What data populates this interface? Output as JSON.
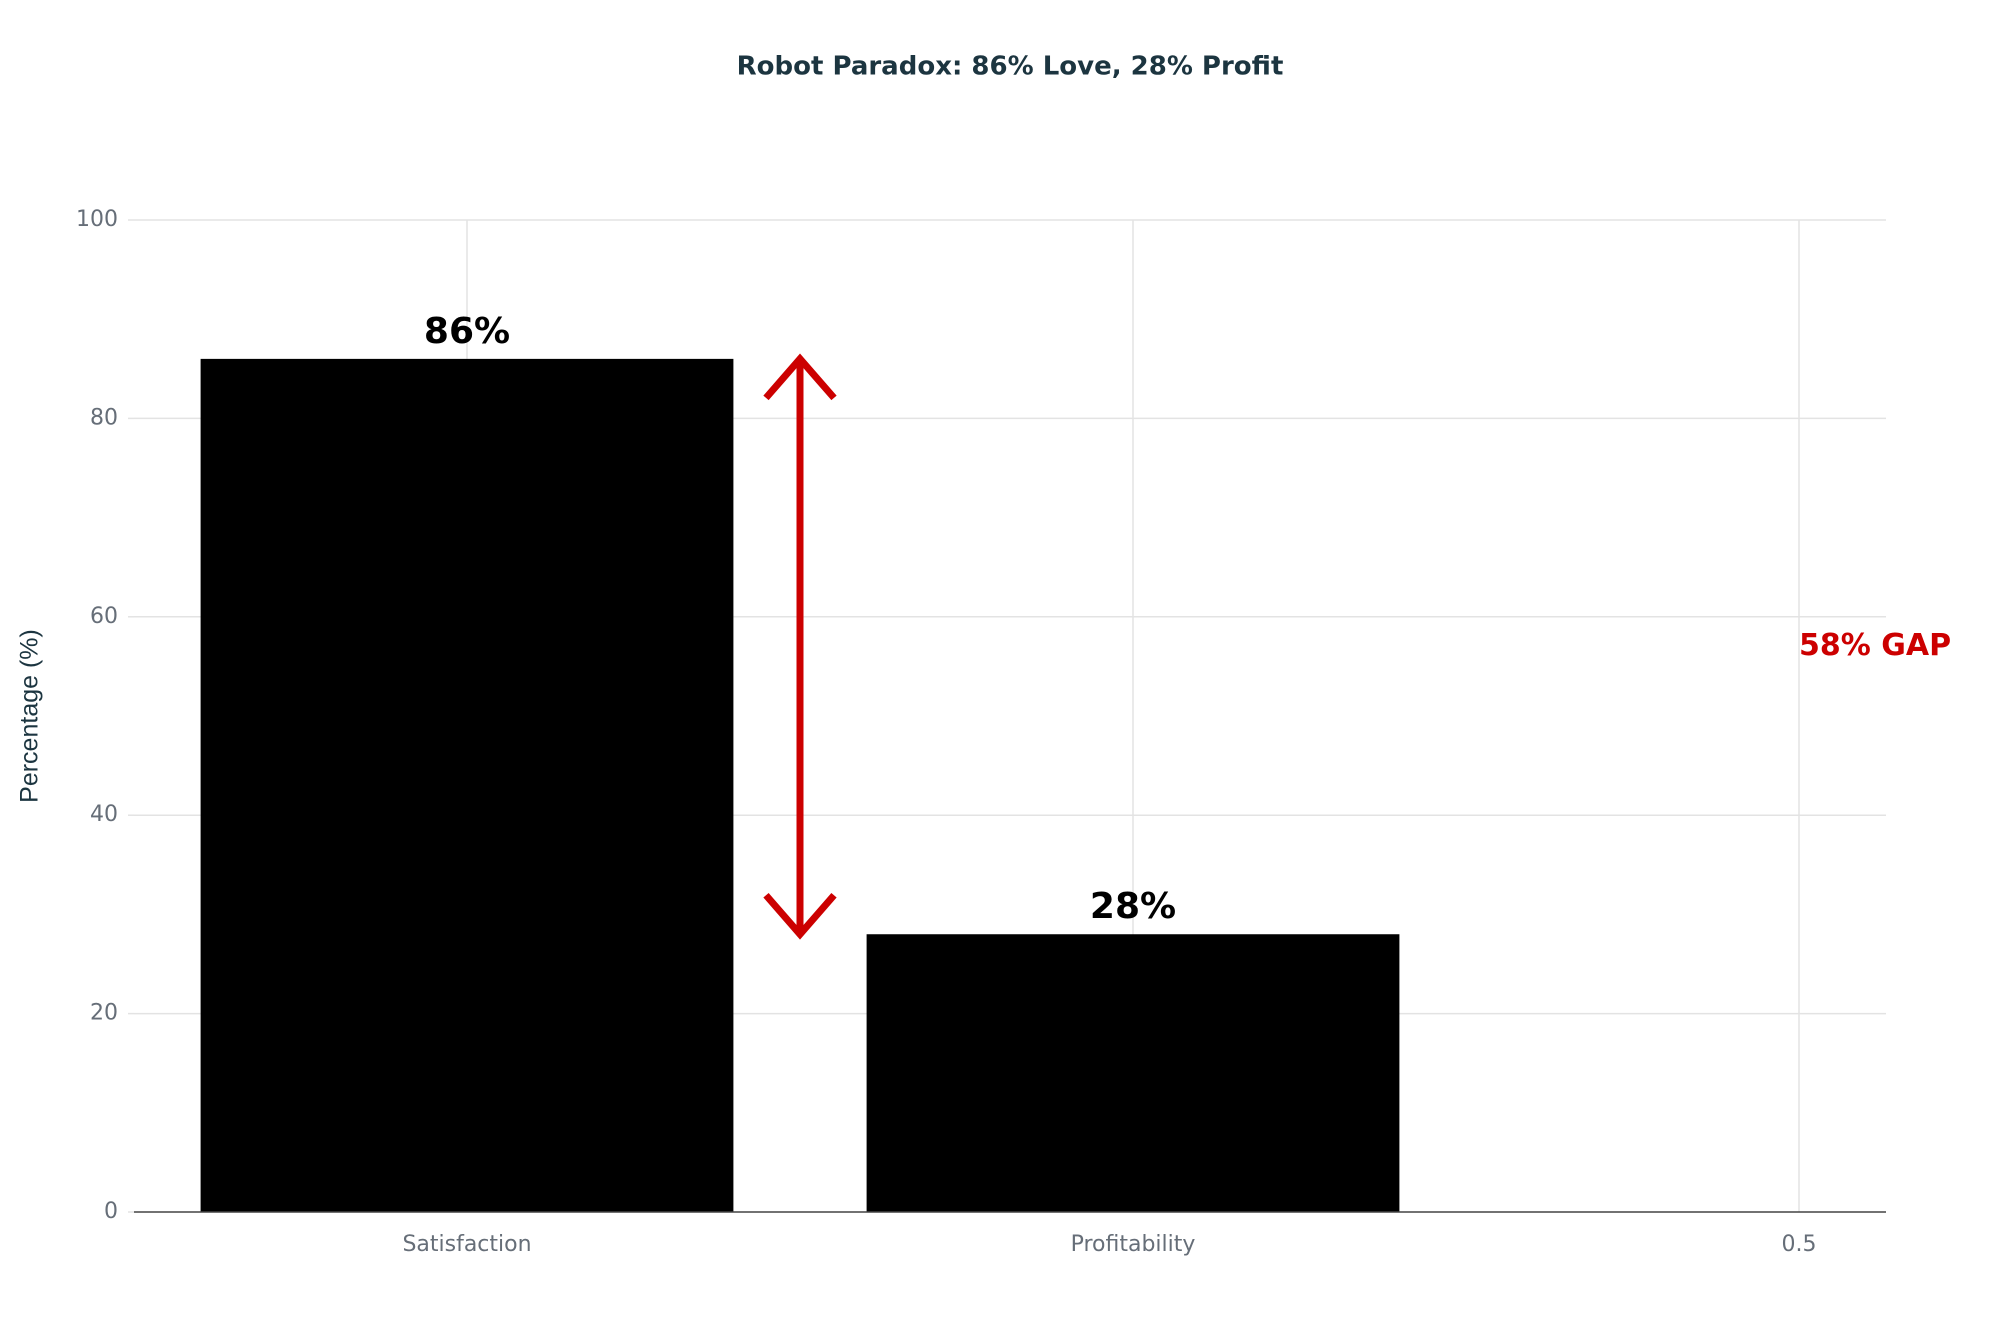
{
  "chart_data": {
    "type": "bar",
    "title": "Robot Paradox: 86% Love, 28% Profit",
    "y_label": "Percentage (%)",
    "categories": [
      "Satisfaction",
      "Profitability",
      "0.5"
    ],
    "values": [
      86,
      28,
      null
    ],
    "value_labels": [
      "86%",
      "28%",
      null
    ],
    "color": "#000000",
    "annotation": {
      "text": "58% GAP",
      "color": "#cc0000"
    },
    "ylim": [
      0,
      100
    ],
    "yticks": [
      0,
      20,
      40,
      60,
      80,
      100
    ],
    "grid": true
  }
}
